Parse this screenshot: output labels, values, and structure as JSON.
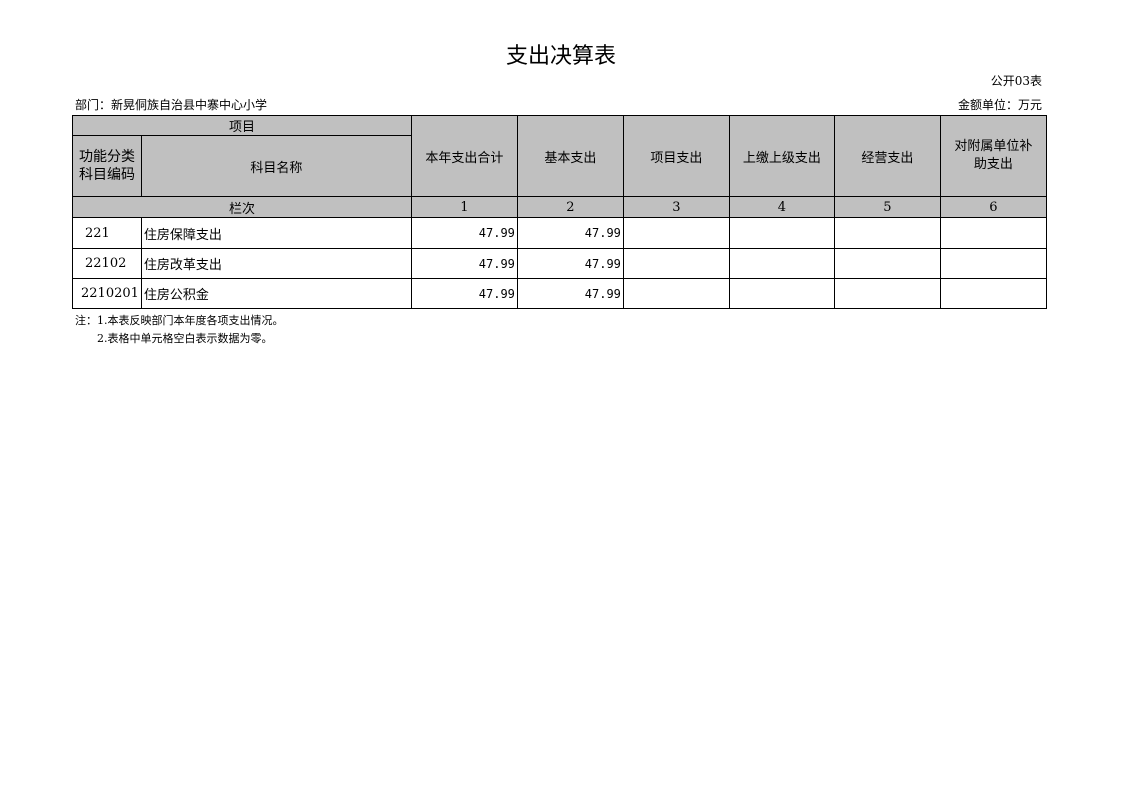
{
  "title": "支出决算表",
  "table_code": "公开03表",
  "department": "部门：新晃侗族自治县中寨中心小学",
  "unit": "金额单位：万元",
  "header": {
    "item": "项目",
    "func_code": "功能分类科目编码",
    "subject_name": "科目名称",
    "columns": [
      "本年支出合计",
      "基本支出",
      "项目支出",
      "上缴上级支出",
      "经营支出",
      "对附属单位补助支出"
    ],
    "row_label": "栏次",
    "column_numbers": [
      "1",
      "2",
      "3",
      "4",
      "5",
      "6"
    ]
  },
  "rows": [
    {
      "code": "221",
      "name": "住房保障支出",
      "values": [
        "47.99",
        "47.99",
        "",
        "",
        "",
        ""
      ]
    },
    {
      "code": "22102",
      "name": "住房改革支出",
      "values": [
        "47.99",
        "47.99",
        "",
        "",
        "",
        ""
      ]
    },
    {
      "code": "2210201",
      "name": "住房公积金",
      "values": [
        "47.99",
        "47.99",
        "",
        "",
        "",
        ""
      ]
    }
  ],
  "notes": [
    "注：1.本表反映部门本年度各项支出情况。",
    "2.表格中单元格空白表示数据为零。"
  ],
  "colors": {
    "header_fill": "#c0c0c0"
  }
}
